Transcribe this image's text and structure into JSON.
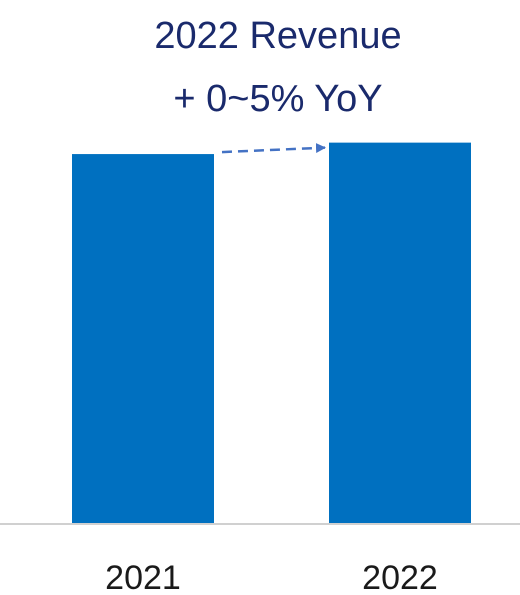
{
  "chart_data": {
    "type": "bar",
    "title_lines": [
      "2022 Revenue",
      "+ 0~5% YoY"
    ],
    "categories": [
      "2021",
      "2022"
    ],
    "values": [
      97,
      100
    ],
    "xlabel": "",
    "ylabel": "",
    "ylim": [
      0,
      102
    ],
    "grid": false,
    "legend": "none",
    "annotation": "dashed-arrow-2021-to-2022",
    "colors": {
      "bar": "#0070c0",
      "arrow": "#4472c4",
      "axis": "#d0d0d0",
      "title": "#1a2a6c",
      "ticks": "#1a1a1a"
    }
  }
}
